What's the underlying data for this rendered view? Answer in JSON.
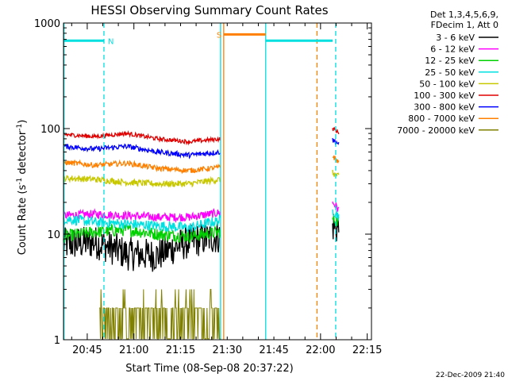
{
  "chart_data": {
    "type": "line",
    "title": "HESSI Observing Summary Count Rates",
    "xlabel": "Start Time (08-Sep-08 20:37:22)",
    "ylabel_main": "Count Rate (s",
    "ylabel_sup1": "-1",
    "ylabel_mid": " detector",
    "ylabel_sup2": "-1",
    "ylabel_end": ")",
    "y_scale": "log",
    "ylim": [
      1,
      1000
    ],
    "y_ticks": [
      "1",
      "10",
      "100",
      "1000"
    ],
    "x_tick_labels": [
      "20:45",
      "21:00",
      "21:15",
      "21:30",
      "21:45",
      "22:00",
      "22:15"
    ],
    "x_tick_minutes": [
      7.63,
      22.63,
      37.63,
      52.63,
      67.63,
      82.63,
      97.63
    ],
    "xlim_minutes": [
      0,
      99
    ],
    "footer_date": "22-Dec-2009 21:40",
    "legend_header": [
      "Det 1,3,4,5,6,9,",
      "FDecim 1, Att 0"
    ],
    "legend_position": "top-right outside",
    "series": [
      {
        "name": "3 - 6 keV",
        "color": "#000000",
        "segments": [
          [
            0,
            50.5,
            [
              8,
              8.4,
              6.5,
              6.3,
              8.5,
              9.5
            ]
          ],
          [
            86.5,
            88.5,
            [
              12,
              11
            ]
          ]
        ],
        "noise": 0.16
      },
      {
        "name": "6 - 12 keV",
        "color": "#ff00ff",
        "segments": [
          [
            0,
            50.5,
            [
              15,
              15.5,
              15,
              14.5,
              14.5,
              16
            ]
          ],
          [
            86.5,
            88.5,
            [
              20,
              17
            ]
          ]
        ],
        "noise": 0.04
      },
      {
        "name": "12 - 25 keV",
        "color": "#00d000",
        "segments": [
          [
            0,
            50.5,
            [
              9.5,
              10.5,
              11,
              10,
              9.5,
              10.5
            ]
          ],
          [
            86.5,
            88.5,
            [
              14,
              13
            ]
          ]
        ],
        "noise": 0.06
      },
      {
        "name": "25 - 50 keV",
        "color": "#00e0e0",
        "segments": [
          [
            0,
            50.5,
            [
              14,
              13,
              12.5,
              12,
              11.5,
              13.5
            ]
          ],
          [
            86.5,
            88.5,
            [
              17,
              15
            ]
          ]
        ],
        "noise": 0.05
      },
      {
        "name": "50 - 100 keV",
        "color": "#c8c800",
        "segments": [
          [
            0,
            50.5,
            [
              34,
              33,
              31,
              30,
              30,
              33
            ]
          ],
          [
            86.5,
            88.5,
            [
              38,
              35
            ]
          ]
        ],
        "noise": 0.03
      },
      {
        "name": "100 - 300 keV",
        "color": "#e00000",
        "segments": [
          [
            0,
            50.5,
            [
              88,
              84,
              90,
              80,
              75,
              80
            ]
          ],
          [
            86.5,
            88.5,
            [
              100,
              92
            ]
          ]
        ],
        "noise": 0.02
      },
      {
        "name": "300 - 800 keV",
        "color": "#0000ff",
        "segments": [
          [
            0,
            50.5,
            [
              68,
              64,
              68,
              60,
              56,
              60
            ]
          ],
          [
            86.5,
            88.5,
            [
              78,
              72
            ]
          ]
        ],
        "noise": 0.025
      },
      {
        "name": "800 - 7000 keV",
        "color": "#ff8000",
        "segments": [
          [
            0,
            50.5,
            [
              48,
              45,
              47,
              42,
              40,
              43
            ]
          ],
          [
            86.5,
            88.5,
            [
              55,
              48
            ]
          ]
        ],
        "noise": 0.025
      },
      {
        "name": "7000 - 20000 keV",
        "color": "#808000",
        "segments": [
          [
            11.5,
            50.5,
            [
              2,
              2,
              2,
              2,
              2,
              2
            ]
          ]
        ],
        "noise": 0
      }
    ],
    "state_bars": [
      {
        "label": "N",
        "color": "#00e0e0",
        "y": 680,
        "x1": 0,
        "x2": 13,
        "dashed_at": 13
      },
      {
        "label": "S",
        "color": "#ff8000",
        "y": 780,
        "x1": 51.5,
        "x2": 65,
        "dashed_at": 65
      },
      {
        "label": "",
        "color": "#ff8000",
        "y": 780,
        "x1": 65,
        "x2": 65,
        "dashed_at": 65
      },
      {
        "label": "",
        "color": "#00e0e0",
        "y": 680,
        "x1": 65,
        "x2": 86.5,
        "dashed_at": 87.5
      }
    ],
    "vertical_lines": [
      {
        "x": 0.15,
        "color": "#00e0e0",
        "style": "solid"
      },
      {
        "x": 13,
        "color": "#00e0e0",
        "style": "dashed"
      },
      {
        "x": 50.5,
        "color": "#00e0e0",
        "style": "solid"
      },
      {
        "x": 51.5,
        "color": "#ff8000",
        "style": "solid"
      },
      {
        "x": 65,
        "color": "#00e0e0",
        "style": "solid"
      },
      {
        "x": 81.5,
        "color": "#ff8000",
        "style": "dashed"
      },
      {
        "x": 87.5,
        "color": "#00e0e0",
        "style": "dashed"
      }
    ]
  }
}
